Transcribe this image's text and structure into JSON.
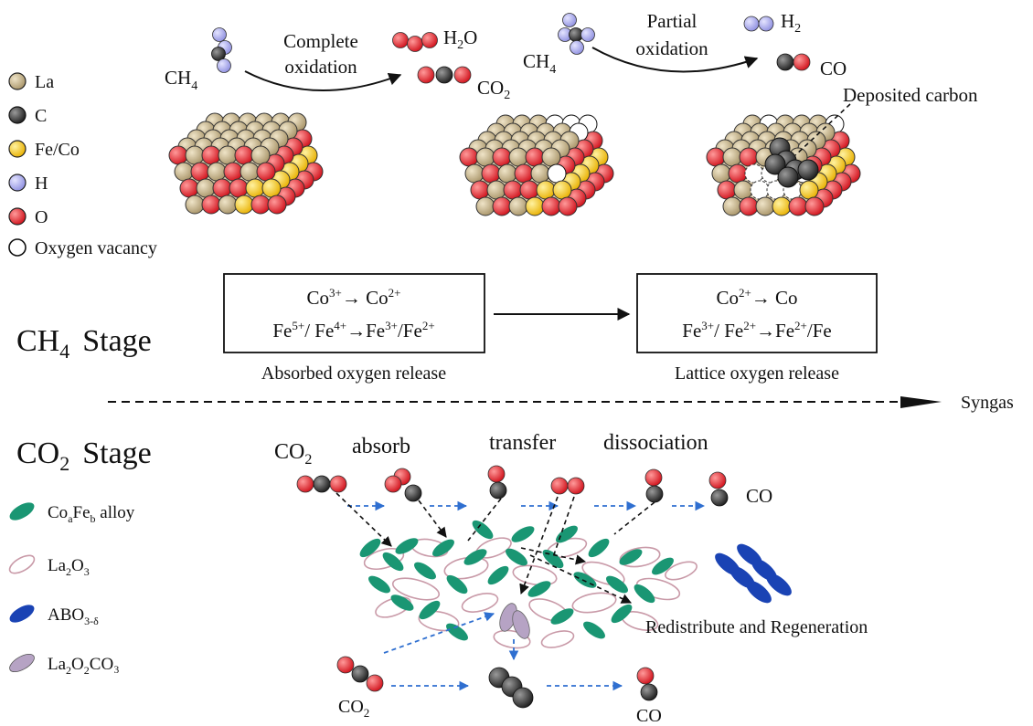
{
  "colors": {
    "la": "#b9a77f",
    "c": "#333333",
    "fe_co": "#f4c419",
    "h": "#a9aaee",
    "o": "#e8282d",
    "vacancy": "#ffffff",
    "alloy": "#1a9673",
    "la2o3": "#c99aa8",
    "abo3": "#1a43b4",
    "la2o2co3": "#b6a3c4",
    "dashed_arrow": "#2f6fd0"
  },
  "legend_top": [
    {
      "label": "La",
      "color_key": "la"
    },
    {
      "label": "C",
      "color_key": "c"
    },
    {
      "label": "Fe/Co",
      "color_key": "fe_co"
    },
    {
      "label": "H",
      "color_key": "h"
    },
    {
      "label": "O",
      "color_key": "o"
    },
    {
      "label": "Oxygen vacancy",
      "color_key": "vacancy"
    }
  ],
  "ch4_stage": {
    "stage_label": "CH",
    "stage_sub": "4",
    "stage_word": "Stage",
    "ch4_formula": "CH",
    "ch4_sub": "4",
    "complete_oxidation": [
      "Complete",
      "oxidation"
    ],
    "partial_oxidation": [
      "Partial",
      "oxidation"
    ],
    "h2o": "H",
    "h2o_sub": "2",
    "h2o_tail": "O",
    "co2": "CO",
    "co2_sub": "2",
    "h2": "H",
    "h2_sub": "2",
    "co": "CO",
    "deposited_carbon": "Deposited carbon",
    "box1": {
      "line1": {
        "a": "Co",
        "a_sup": "3+",
        "arrow": "→ Co",
        "b_sup": "2+"
      },
      "line2": {
        "a": "Fe",
        "a_sup": "5+",
        "b": "/ Fe",
        "b_sup": "4+",
        "c": "→Fe",
        "c_sup": "3+",
        "d": "/Fe",
        "d_sup": "2+"
      }
    },
    "box2": {
      "line1": {
        "a": "Co",
        "a_sup": "2+",
        "rest": "→ Co"
      },
      "line2": {
        "a": "Fe",
        "a_sup": "3+",
        "b": "/ Fe",
        "b_sup": "2+",
        "c": "→Fe",
        "c_sup": "2+",
        "d": "/Fe"
      }
    },
    "caption1": "Absorbed oxygen release",
    "caption2": "Lattice oxygen release",
    "syngas": "Syngas"
  },
  "co2_stage": {
    "stage_label": "CO",
    "stage_sub": "2",
    "stage_word": "Stage",
    "co2_label": "CO",
    "co2_sub": "2",
    "absorb": "absorb",
    "transfer": "transfer",
    "dissociation": "dissociation",
    "co_label": "CO",
    "redistribute": "Redistribute and Regeneration",
    "bottom_co2": "CO",
    "bottom_co2_sub": "2",
    "bottom_co": "CO"
  },
  "legend_bottom": [
    {
      "label": "Co",
      "sub_a": "a",
      "mid": "Fe",
      "sub_b": "b",
      "tail": " alloy",
      "color_key": "alloy"
    },
    {
      "label": "La",
      "sub_a": "2",
      "mid": "O",
      "sub_b": "3",
      "tail": "",
      "color_key": "la2o3"
    },
    {
      "label": "ABO",
      "sub_a": "3-δ",
      "mid": "",
      "sub_b": "",
      "tail": "",
      "color_key": "abo3"
    },
    {
      "label": "La",
      "sub_a": "2",
      "mid": "O",
      "sub_b": "2",
      "tail": "CO₃",
      "color_key": "la2o2co3"
    }
  ]
}
